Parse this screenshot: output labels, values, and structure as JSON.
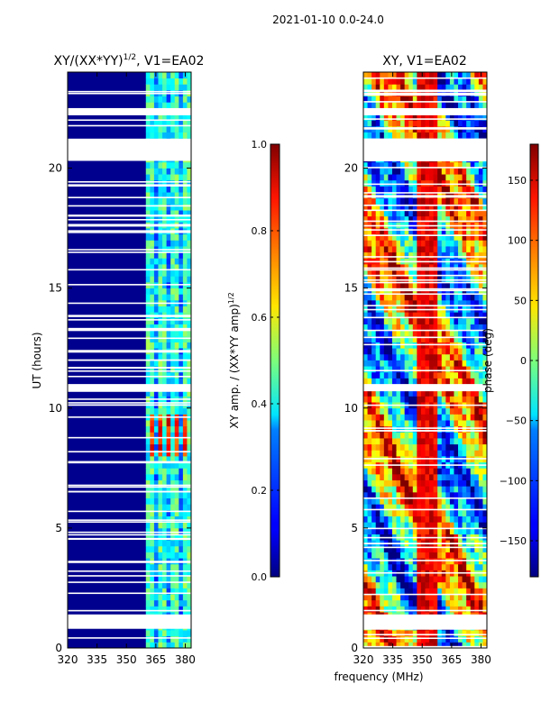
{
  "figure": {
    "suptitle": "2021-01-10 0.0-24.0",
    "xlabel": "frequency (MHz)"
  },
  "chart_data": [
    {
      "type": "heatmap",
      "title": "XY/(XX*YY)",
      "title_exponent": "1/2",
      "title_suffix": ", V1=EA02",
      "ylabel": "UT (hours)",
      "xlim": [
        320,
        383
      ],
      "ylim": [
        0,
        24
      ],
      "xticks": [
        "320",
        "335",
        "350",
        "365",
        "380"
      ],
      "xtick_values": [
        320,
        335,
        350,
        365,
        380
      ],
      "yticks": [
        "0",
        "5",
        "10",
        "15",
        "20"
      ],
      "ytick_values": [
        0,
        5,
        10,
        15,
        20
      ],
      "band_frequency_MHz": [
        360,
        384
      ],
      "band_strong_UT_hours": [
        8.0,
        9.7
      ],
      "flagged_blocks_UT_hours": [
        [
          0.8,
          1.4
        ],
        [
          10.7,
          11.0
        ],
        [
          20.3,
          21.2
        ],
        [
          22.2,
          22.5
        ]
      ],
      "colorbar": {
        "label": "XY amp. / (XX*YY amp)",
        "label_exponent": "1/2",
        "vmin": 0.0,
        "vmax": 1.0,
        "ticks": [
          "0.0",
          "0.2",
          "0.4",
          "0.6",
          "0.8",
          "1.0"
        ],
        "tick_values": [
          0.0,
          0.2,
          0.4,
          0.6,
          0.8,
          1.0
        ]
      }
    },
    {
      "type": "heatmap",
      "title": "XY, V1=EA02",
      "ylabel": "",
      "xlim": [
        320,
        383
      ],
      "ylim": [
        0,
        24
      ],
      "xticks": [
        "320",
        "335",
        "350",
        "365",
        "380"
      ],
      "xtick_values": [
        320,
        335,
        350,
        365,
        380
      ],
      "yticks": [
        "0",
        "5",
        "10",
        "15",
        "20"
      ],
      "ytick_values": [
        0,
        5,
        10,
        15,
        20
      ],
      "flagged_blocks_UT_hours": [
        [
          0.8,
          1.4
        ],
        [
          10.7,
          11.0
        ],
        [
          20.3,
          21.2
        ],
        [
          22.2,
          22.5
        ]
      ],
      "colorbar": {
        "label": "phase (deg)",
        "vmin": -180,
        "vmax": 180,
        "ticks": [
          "−150",
          "−100",
          "−50",
          "0",
          "50",
          "100",
          "150"
        ],
        "tick_values": [
          -150,
          -100,
          -50,
          0,
          50,
          100,
          150
        ]
      }
    }
  ]
}
